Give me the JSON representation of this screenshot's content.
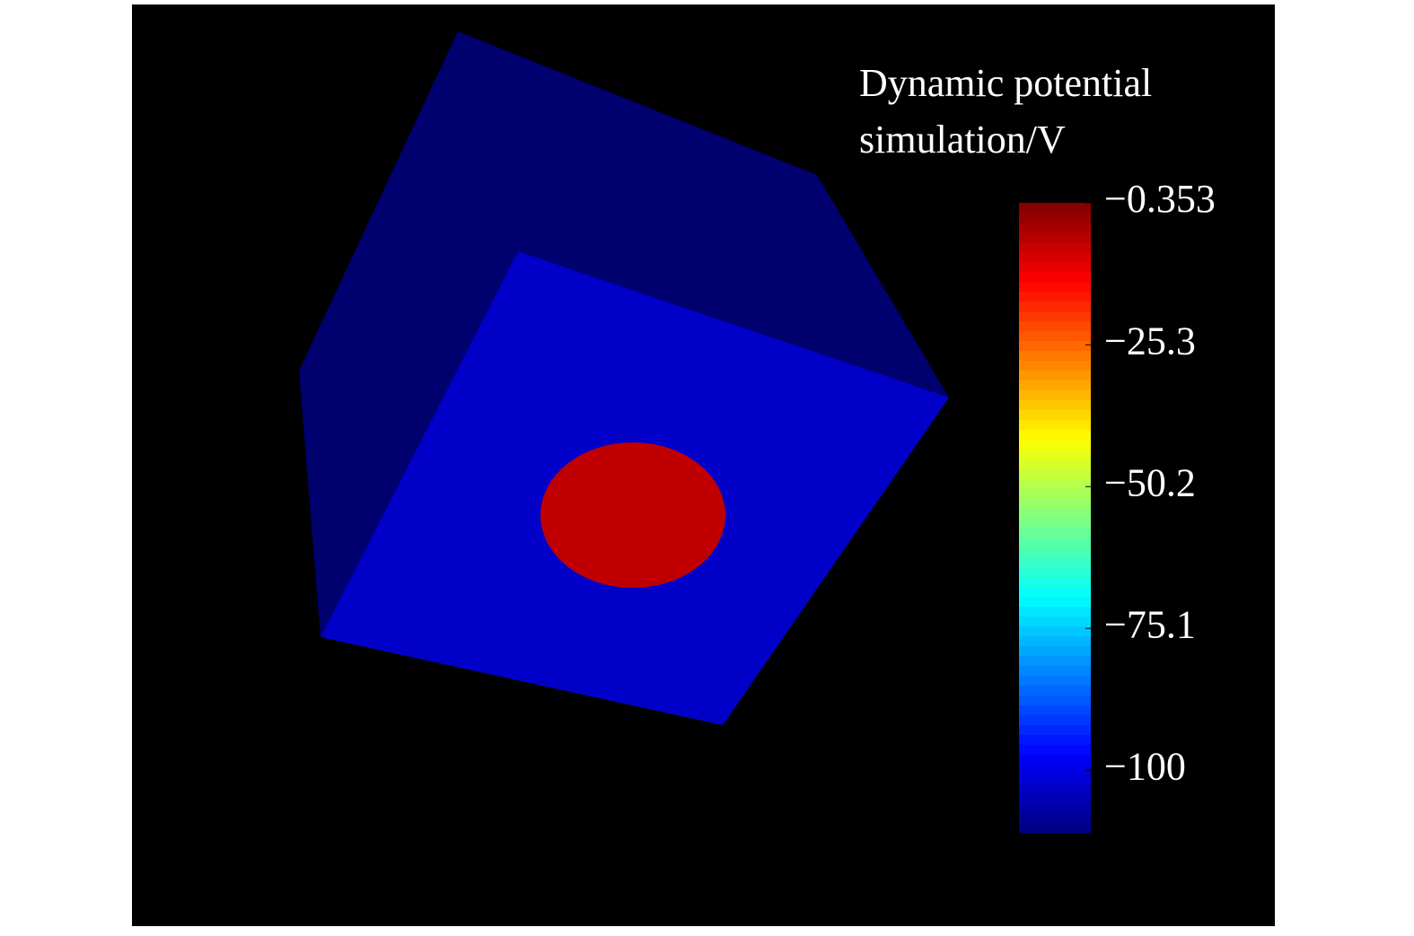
{
  "chart_data": {
    "type": "colorbar",
    "title": [
      "Dynamic potential",
      "simulation/V"
    ],
    "colormap": "jet",
    "clim": [
      -111,
      -0.353
    ],
    "cticks": [
      {
        "value": -0.353,
        "label": "−0.353"
      },
      {
        "value": -25.3,
        "label": "−25.3"
      },
      {
        "value": -50.2,
        "label": "−50.2"
      },
      {
        "value": -75.1,
        "label": "−75.1"
      },
      {
        "value": -100,
        "label": "−100"
      }
    ]
  }
}
